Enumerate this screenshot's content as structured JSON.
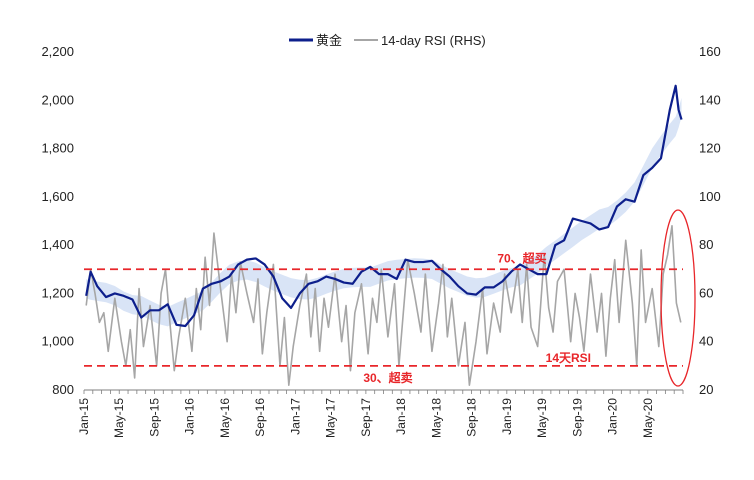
{
  "chart_data": {
    "type": "line",
    "title": "",
    "legend": {
      "placement": "top-center",
      "items": [
        {
          "label": "黄金",
          "color": "#0d1f8c"
        },
        {
          "label": "14-day RSI (RHS)",
          "color": "#a6a6a6"
        }
      ]
    },
    "y_left": {
      "min": 800,
      "max": 2200,
      "step": 200,
      "ticks": [
        "800",
        "1,000",
        "1,200",
        "1,400",
        "1,600",
        "1,800",
        "2,000",
        "2,200"
      ]
    },
    "y_right": {
      "min": 20,
      "max": 160,
      "step": 20,
      "ticks": [
        "20",
        "40",
        "60",
        "80",
        "100",
        "120",
        "140",
        "160"
      ]
    },
    "x_labels": [
      "Jan-15",
      "May-15",
      "Sep-15",
      "Jan-16",
      "May-16",
      "Sep-16",
      "Jan-17",
      "May-17",
      "Sep-17",
      "Jan-18",
      "May-18",
      "Sep-18",
      "Jan-19",
      "May-19",
      "Sep-19",
      "Jan-20",
      "May-20"
    ],
    "x_range": [
      "2015-01",
      "2020-08"
    ],
    "series": [
      {
        "name": "黄金",
        "axis": "left",
        "color": "#0d1f8c",
        "x": [
          "2015-01",
          "2015-01",
          "2015-02",
          "2015-03",
          "2015-04",
          "2015-05",
          "2015-06",
          "2015-07",
          "2015-08",
          "2015-09",
          "2015-10",
          "2015-11",
          "2015-12",
          "2016-01",
          "2016-02",
          "2016-03",
          "2016-04",
          "2016-05",
          "2016-06",
          "2016-07",
          "2016-08",
          "2016-09",
          "2016-10",
          "2016-11",
          "2016-12",
          "2017-01",
          "2017-02",
          "2017-03",
          "2017-04",
          "2017-05",
          "2017-06",
          "2017-07",
          "2017-08",
          "2017-09",
          "2017-10",
          "2017-11",
          "2017-12",
          "2018-01",
          "2018-02",
          "2018-03",
          "2018-04",
          "2018-05",
          "2018-06",
          "2018-07",
          "2018-08",
          "2018-09",
          "2018-10",
          "2018-11",
          "2018-12",
          "2019-01",
          "2019-02",
          "2019-03",
          "2019-04",
          "2019-05",
          "2019-06",
          "2019-07",
          "2019-08",
          "2019-09",
          "2019-10",
          "2019-11",
          "2019-12",
          "2020-01",
          "2020-02",
          "2020-03",
          "2020-04",
          "2020-05",
          "2020-06",
          "2020-07",
          "2020-08",
          "2020-08",
          "2020-08"
        ],
        "values": [
          1190,
          1290,
          1230,
          1185,
          1200,
          1190,
          1175,
          1100,
          1130,
          1130,
          1155,
          1070,
          1065,
          1110,
          1220,
          1240,
          1250,
          1270,
          1320,
          1340,
          1345,
          1320,
          1270,
          1180,
          1140,
          1200,
          1240,
          1250,
          1270,
          1260,
          1245,
          1240,
          1290,
          1310,
          1280,
          1280,
          1260,
          1340,
          1330,
          1330,
          1335,
          1300,
          1270,
          1230,
          1200,
          1195,
          1225,
          1225,
          1250,
          1290,
          1320,
          1300,
          1280,
          1280,
          1400,
          1420,
          1510,
          1500,
          1490,
          1465,
          1475,
          1560,
          1590,
          1580,
          1690,
          1720,
          1760,
          1960,
          2060,
          1960,
          1920
        ]
      },
      {
        "name": "14-day RSI (RHS)",
        "axis": "right",
        "color": "#a6a6a6",
        "x": [
          "2015-01",
          "2015-01",
          "2015-02",
          "2015-02",
          "2015-03",
          "2015-03",
          "2015-04",
          "2015-05",
          "2015-05",
          "2015-06",
          "2015-06",
          "2015-07",
          "2015-07",
          "2015-08",
          "2015-09",
          "2015-09",
          "2015-10",
          "2015-10",
          "2015-11",
          "2015-11",
          "2015-12",
          "2016-01",
          "2016-01",
          "2016-02",
          "2016-02",
          "2016-03",
          "2016-03",
          "2016-04",
          "2016-05",
          "2016-05",
          "2016-06",
          "2016-06",
          "2016-07",
          "2016-08",
          "2016-08",
          "2016-09",
          "2016-09",
          "2016-10",
          "2016-11",
          "2016-11",
          "2016-12",
          "2016-12",
          "2017-01",
          "2017-02",
          "2017-02",
          "2017-03",
          "2017-03",
          "2017-04",
          "2017-04",
          "2017-05",
          "2017-06",
          "2017-06",
          "2017-07",
          "2017-07",
          "2017-08",
          "2017-09",
          "2017-09",
          "2017-10",
          "2017-10",
          "2017-11",
          "2017-12",
          "2017-12",
          "2018-01",
          "2018-01",
          "2018-02",
          "2018-03",
          "2018-03",
          "2018-04",
          "2018-05",
          "2018-05",
          "2018-06",
          "2018-06",
          "2018-07",
          "2018-08",
          "2018-08",
          "2018-09",
          "2018-10",
          "2018-10",
          "2018-11",
          "2018-12",
          "2018-12",
          "2019-01",
          "2019-02",
          "2019-02",
          "2019-03",
          "2019-03",
          "2019-04",
          "2019-05",
          "2019-05",
          "2019-06",
          "2019-06",
          "2019-07",
          "2019-08",
          "2019-08",
          "2019-09",
          "2019-09",
          "2019-10",
          "2019-11",
          "2019-11",
          "2019-12",
          "2019-12",
          "2020-01",
          "2020-01",
          "2020-02",
          "2020-03",
          "2020-03",
          "2020-04",
          "2020-04",
          "2020-05",
          "2020-06",
          "2020-06",
          "2020-07",
          "2020-07",
          "2020-08",
          "2020-08"
        ],
        "values": [
          55,
          70,
          60,
          48,
          52,
          36,
          58,
          40,
          30,
          45,
          25,
          62,
          38,
          55,
          30,
          60,
          70,
          48,
          28,
          42,
          58,
          36,
          62,
          45,
          75,
          55,
          85,
          62,
          40,
          68,
          52,
          73,
          60,
          48,
          66,
          35,
          52,
          72,
          30,
          50,
          22,
          38,
          55,
          68,
          42,
          62,
          36,
          58,
          46,
          68,
          40,
          55,
          28,
          52,
          64,
          35,
          58,
          48,
          70,
          42,
          64,
          30,
          52,
          74,
          60,
          44,
          68,
          36,
          56,
          72,
          42,
          58,
          30,
          48,
          22,
          40,
          62,
          35,
          56,
          44,
          68,
          52,
          70,
          48,
          72,
          46,
          38,
          76,
          54,
          44,
          65,
          70,
          40,
          60,
          50,
          36,
          68,
          44,
          60,
          34,
          58,
          74,
          48,
          82,
          56,
          30,
          78,
          48,
          62,
          38,
          68,
          76,
          88,
          56,
          48
        ]
      }
    ],
    "annotations": [
      {
        "text": "70、超买",
        "y_right": 70,
        "line": "dashed",
        "color": "#e8262a"
      },
      {
        "text": "30、超卖",
        "y_right": 30,
        "line": "dashed",
        "color": "#e8262a"
      },
      {
        "text": "14天RSI",
        "color": "#e8262a",
        "marker": "ellipse around latest RSI peak"
      }
    ]
  }
}
